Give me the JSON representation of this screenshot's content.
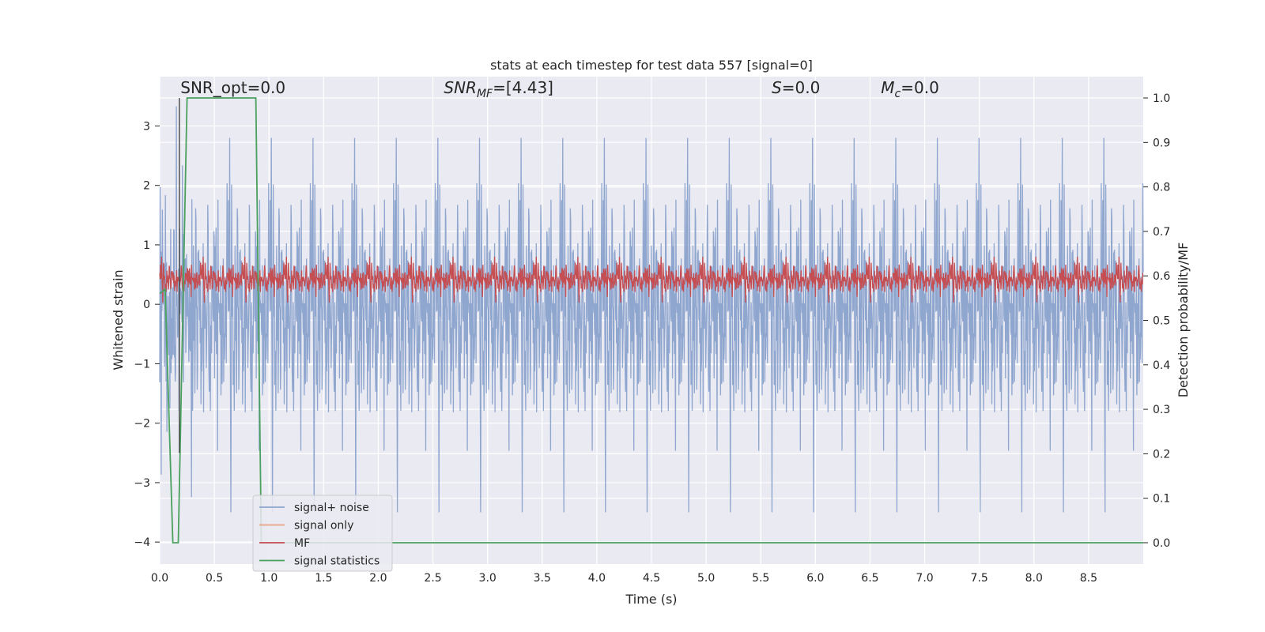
{
  "chart_data": {
    "type": "line",
    "title": "stats at each timestep for test data 557 [signal=0]",
    "xlabel": "Time (s)",
    "ylabel": "Whitened strain",
    "y2label": "Detection probability/MF",
    "xlim": [
      0.0,
      9.0
    ],
    "ylim": [
      -4.37,
      3.83
    ],
    "y2lim": [
      -0.048,
      1.048
    ],
    "xticks": [
      "0.0",
      "0.5",
      "1.0",
      "1.5",
      "2.0",
      "2.5",
      "3.0",
      "3.5",
      "4.0",
      "4.5",
      "5.0",
      "5.5",
      "6.0",
      "6.5",
      "7.0",
      "7.5",
      "8.0",
      "8.5"
    ],
    "yticks": [
      "3",
      "2",
      "1",
      "0",
      "−1",
      "−2",
      "−3",
      "−4"
    ],
    "y2ticks": [
      "1.0",
      "0.9",
      "0.8",
      "0.7",
      "0.6",
      "0.5",
      "0.4",
      "0.3",
      "0.2",
      "0.1",
      "0.0"
    ],
    "grid": true,
    "legend_position": "lower-left",
    "annotations": [
      {
        "text": "SNR_opt=0.0",
        "x": 0.19,
        "y": 3.55
      },
      {
        "text": "SNR_MF=[4.43]",
        "x": 2.6,
        "y": 3.55
      },
      {
        "text": "S=0.0",
        "x": 5.6,
        "y": 3.55
      },
      {
        "text": "M_c=0.0",
        "x": 6.6,
        "y": 3.55
      }
    ],
    "series": [
      {
        "name": "signal+ noise",
        "color": "#8fa6cf",
        "axis": "left",
        "description_values": {
          "approx_range": [
            -3.5,
            3.4
          ],
          "pattern": "dense random noise"
        }
      },
      {
        "name": "signal only",
        "color": "#e8a382",
        "axis": "left",
        "values": []
      },
      {
        "name": "MF",
        "color": "#c44e52",
        "axis": "right",
        "description_values": {
          "approx_range": [
            0.54,
            0.66
          ],
          "pattern": "dense noisy band"
        }
      },
      {
        "name": "signal statistics",
        "color": "#4aa15e",
        "axis": "right",
        "x": [
          0.0,
          0.05,
          0.12,
          0.17,
          0.25,
          0.88,
          0.93,
          9.0
        ],
        "values": [
          0.56,
          0.57,
          0.0,
          0.0,
          1.0,
          1.0,
          0.0,
          0.0
        ]
      }
    ],
    "vline": {
      "x": 0.18,
      "color": "#444444"
    }
  }
}
